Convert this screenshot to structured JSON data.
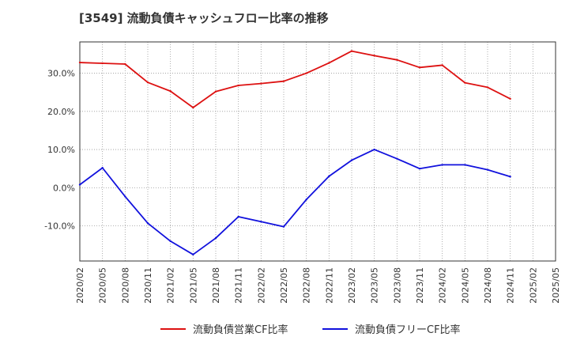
{
  "chart_data": {
    "type": "line",
    "title": "[3549]  流動負債キャッシュフロー比率の推移",
    "x": [
      "2020/02",
      "2020/05",
      "2020/08",
      "2020/11",
      "2021/02",
      "2021/05",
      "2021/08",
      "2021/11",
      "2022/02",
      "2022/05",
      "2022/08",
      "2022/11",
      "2023/02",
      "2023/05",
      "2023/08",
      "2023/11",
      "2024/02",
      "2024/05",
      "2024/08",
      "2024/11",
      "2025/02",
      "2025/05"
    ],
    "series": [
      {
        "name": "流動負債営業CF比率",
        "color": "#dd1111",
        "values": [
          32.8,
          32.6,
          32.4,
          27.6,
          25.3,
          21.0,
          25.2,
          26.8,
          27.3,
          27.9,
          30.0,
          32.7,
          35.8,
          34.6,
          33.5,
          31.5,
          32.1,
          27.5,
          26.3,
          23.3,
          null,
          null
        ]
      },
      {
        "name": "流動負債フリーCF比率",
        "color": "#1111dd",
        "values": [
          0.8,
          5.2,
          -2.3,
          -9.3,
          -14.0,
          -17.5,
          -13.2,
          -7.6,
          -8.9,
          -10.2,
          -3.1,
          3.0,
          7.2,
          10.0,
          7.6,
          5.0,
          6.0,
          6.0,
          4.7,
          2.9,
          null,
          null
        ]
      }
    ],
    "yticks": [
      -10,
      0,
      10,
      20,
      30
    ],
    "ytick_labels": [
      "-10.0%",
      "0.0%",
      "10.0%",
      "20.0%",
      "30.0%"
    ],
    "ylim": [
      -19.2,
      38.2
    ],
    "grid": true,
    "legend_position": "bottom"
  }
}
